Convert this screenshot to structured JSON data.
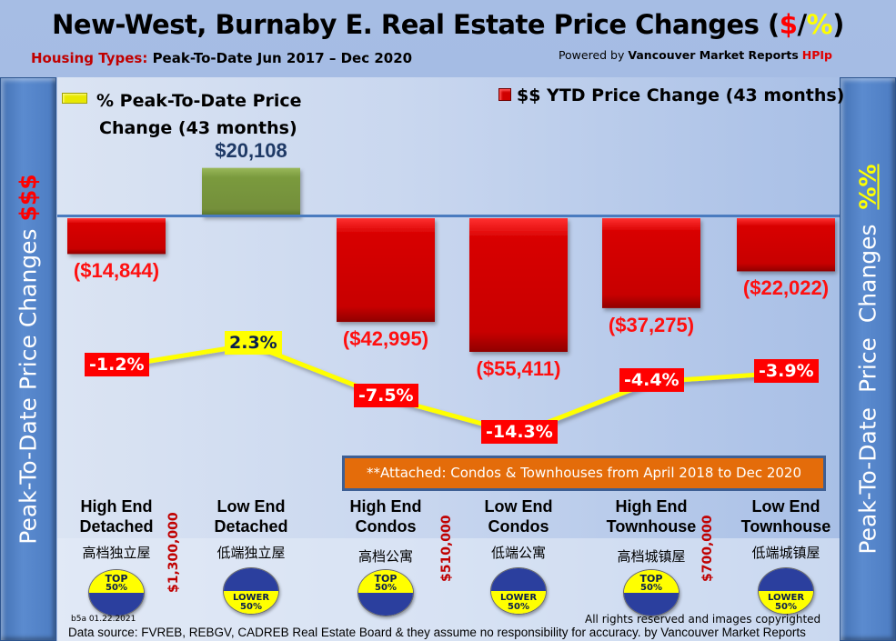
{
  "header": {
    "title_main": "New-West, Burnaby E. Real Estate Price Changes (",
    "title_dollar": "$",
    "title_slash": "/",
    "title_pct": "%",
    "title_close": ")",
    "subtitle_label": "Housing Types:",
    "subtitle_text": "Peak-To-Date Jun 2017 – Dec 2020",
    "powered_prefix": "Powered by",
    "powered_brand": "Vancouver Market Reports",
    "powered_hpi": "HPIp"
  },
  "side_labels": {
    "left_text": "Peak-To-Date Price Changes ",
    "left_accent": "$$$",
    "right_text": "Peak-To-Date  Price  Changes  ",
    "right_accent": "%%"
  },
  "legend": {
    "pct_line1": "% Peak-To-Date Price",
    "pct_line2": "Change (43 months)",
    "usd": "$$ YTD Price Change (43 months)"
  },
  "colors": {
    "bar_negative": "#d40000",
    "bar_positive": "#77933c",
    "line": "#ffff00",
    "baseline": "#4a7bbf",
    "note_bg": "#e46c0a"
  },
  "chart_data": {
    "type": "bar+line",
    "title": "New-West, Burnaby E. Real Estate Price Changes ($/%)",
    "categories": [
      "High End Detached",
      "Low End Detached",
      "High End Condos",
      "Low End Condos",
      "High End Townhouse",
      "Low End Townhouse"
    ],
    "series": [
      {
        "name": "$$ YTD Price Change (43 months)",
        "type": "bar",
        "values": [
          -14844,
          20108,
          -42995,
          -55411,
          -37275,
          -22022
        ],
        "labels": [
          "($14,844)",
          "$20,108",
          "($42,995)",
          "($55,411)",
          "($37,275)",
          "($22,022)"
        ]
      },
      {
        "name": "% Peak-To-Date Price Change (43 months)",
        "type": "line",
        "values": [
          -1.2,
          2.3,
          -7.5,
          -14.3,
          -4.4,
          -3.9
        ],
        "labels": [
          "-1.2%",
          "2.3%",
          "-7.5%",
          "-14.3%",
          "-4.4%",
          "-3.9%"
        ]
      }
    ],
    "xlabel": "",
    "ylabel_left": "Peak-To-Date Price Changes $$$",
    "ylabel_right": "Peak-To-Date Price Changes %%",
    "grid": false,
    "legend": "top"
  },
  "note": "**Attached: Condos & Townhouses from April 2018 to Dec 2020",
  "categories": [
    {
      "line1": "High End",
      "line2": "Detached",
      "cn": "高档独立屋",
      "badge": "top"
    },
    {
      "line1": "Low End",
      "line2": "Detached",
      "cn": "低端独立屋",
      "badge": "lower"
    },
    {
      "line1": "High End",
      "line2": "Condos",
      "cn": "高档公寓",
      "badge": "top"
    },
    {
      "line1": "Low End",
      "line2": "Condos",
      "cn": "低端公寓",
      "badge": "lower"
    },
    {
      "line1": "High End",
      "line2": "Townhouse",
      "cn": "高档城镇屋",
      "badge": "top"
    },
    {
      "line1": "Low End",
      "line2": "Townhouse",
      "cn": "低端城镇屋",
      "badge": "lower"
    }
  ],
  "thresholds": [
    "$1,300,000",
    "$510,000",
    "$700,000"
  ],
  "badges": {
    "top_line1": "TOP",
    "top_line2": "50%",
    "lower_line1": "LOWER",
    "lower_line2": "50%"
  },
  "footer": {
    "stamp": "b5a 01.22.2021",
    "rights": "All rights reserved and  images copyrighted",
    "source": "Data source: FVREB, REBGV, CADREB Real Estate Board & they assume no responsibility for accuracy. by Vancouver Market Reports"
  }
}
